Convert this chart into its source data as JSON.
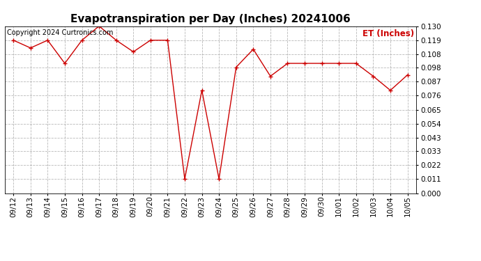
{
  "title": "Evapotranspiration per Day (Inches) 20241006",
  "copyright": "Copyright 2024 Curtronics.com",
  "legend_label": "ET (Inches)",
  "dates": [
    "09/12",
    "09/13",
    "09/14",
    "09/15",
    "09/16",
    "09/17",
    "09/18",
    "09/19",
    "09/20",
    "09/21",
    "09/22",
    "09/23",
    "09/24",
    "09/25",
    "09/26",
    "09/27",
    "09/28",
    "09/29",
    "09/30",
    "10/01",
    "10/02",
    "10/03",
    "10/04",
    "10/05"
  ],
  "values": [
    0.119,
    0.113,
    0.119,
    0.101,
    0.119,
    0.13,
    0.119,
    0.11,
    0.119,
    0.119,
    0.011,
    0.08,
    0.011,
    0.098,
    0.112,
    0.091,
    0.101,
    0.101,
    0.101,
    0.101,
    0.101,
    0.091,
    0.08,
    0.092
  ],
  "line_color": "#cc0000",
  "marker": "+",
  "ylim": [
    0.0,
    0.13
  ],
  "yticks": [
    0.0,
    0.011,
    0.022,
    0.033,
    0.043,
    0.054,
    0.065,
    0.076,
    0.087,
    0.098,
    0.108,
    0.119,
    0.13
  ],
  "bg_color": "#ffffff",
  "grid_color": "#999999",
  "title_fontsize": 11,
  "axis_fontsize": 7.5,
  "copyright_fontsize": 7,
  "legend_fontsize": 8.5
}
